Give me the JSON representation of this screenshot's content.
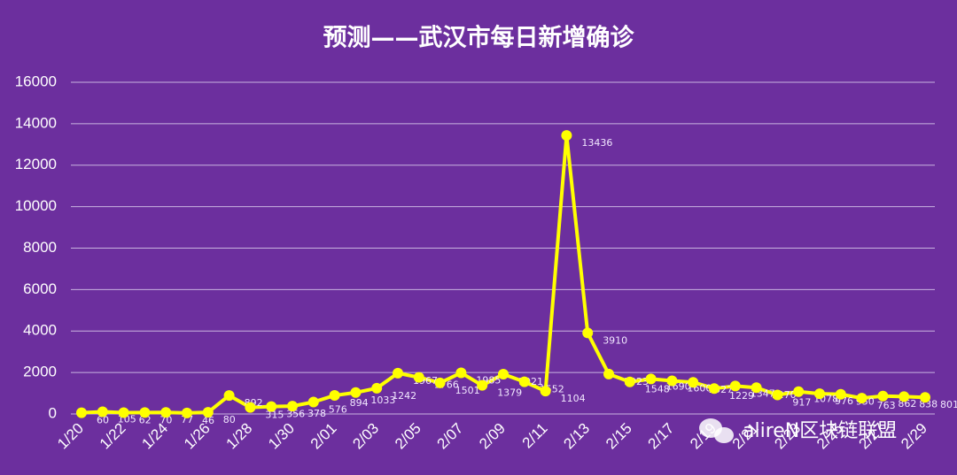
{
  "chart_data": {
    "type": "line",
    "title": "预测——武汉市每日新增确诊",
    "categories": [
      "1/20",
      null,
      "1/22",
      null,
      "1/24",
      null,
      "1/26",
      null,
      "1/28",
      null,
      "1/30",
      null,
      "2/01",
      null,
      "2/03",
      null,
      "2/05",
      null,
      "2/07",
      null,
      "2/09",
      null,
      "2/11",
      null,
      "2/13",
      null,
      "2/15",
      null,
      "2/17",
      null,
      "2/19",
      null,
      "2/21",
      null,
      "2/23",
      null,
      "2/25",
      null,
      "2/27",
      null,
      "2/29"
    ],
    "series": [
      {
        "name": "武汉市每日新增确诊",
        "color": "#ffff00",
        "values": [
          60,
          105,
          62,
          70,
          77,
          46,
          80,
          892,
          315,
          356,
          378,
          576,
          894,
          1033,
          1242,
          1967,
          1766,
          1501,
          1985,
          1379,
          1921,
          1552,
          1104,
          13436,
          3910,
          1923,
          1548,
          1690,
          1600,
          1527,
          1229,
          1347,
          1270,
          917,
          1078,
          976,
          950,
          763,
          862,
          838,
          801
        ]
      }
    ],
    "ylim": [
      0,
      16000
    ],
    "yticks": [
      0,
      2000,
      4000,
      6000,
      8000,
      10000,
      12000,
      14000,
      16000
    ],
    "grid": true,
    "watermark": "alireN区块链联盟"
  }
}
